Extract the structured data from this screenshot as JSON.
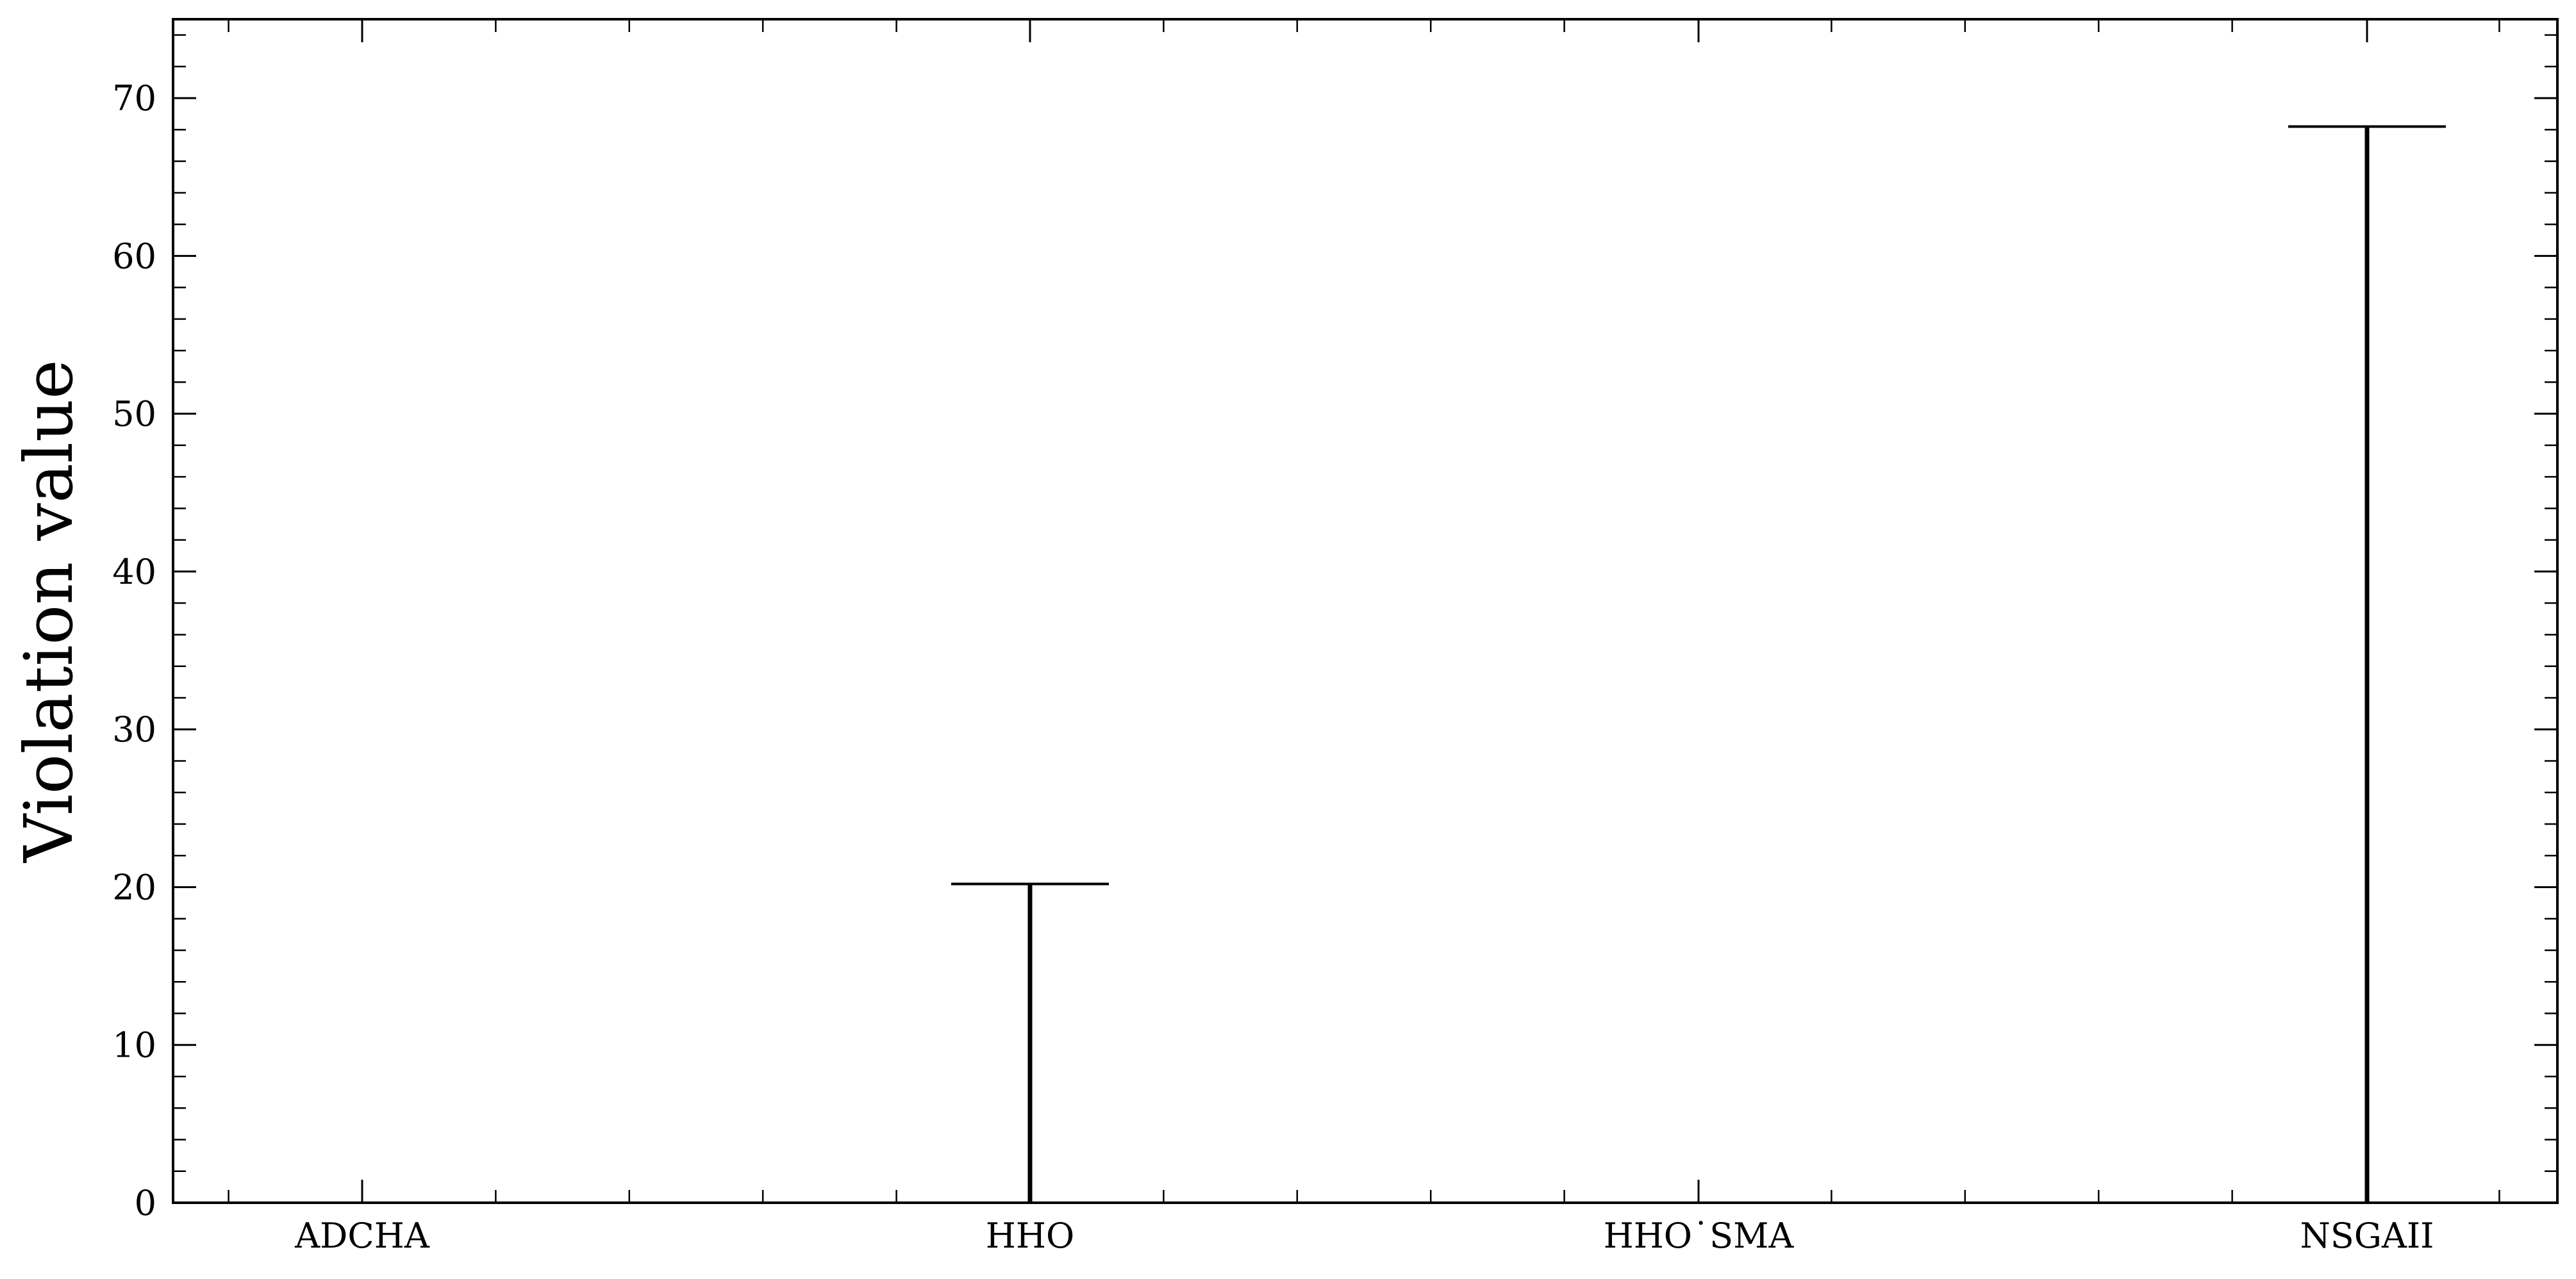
{
  "chart_data": {
    "type": "violin",
    "title": "",
    "xlabel": "",
    "ylabel": "Violation value",
    "categories": [
      "ADCHA",
      "HHO",
      "HHO˙SMA",
      "NSGAII"
    ],
    "series": [
      {
        "category": "ADCHA",
        "min": 0,
        "max": 0
      },
      {
        "category": "HHO",
        "min": 0,
        "max": 20.2
      },
      {
        "category": "HHO˙SMA",
        "min": 0,
        "max": 0
      },
      {
        "category": "NSGAII",
        "min": 0,
        "max": 68.2
      }
    ],
    "ylim": [
      0,
      75
    ],
    "yticks": [
      0,
      10,
      20,
      30,
      40,
      50,
      60,
      70
    ],
    "grid": false,
    "legend": "none"
  }
}
